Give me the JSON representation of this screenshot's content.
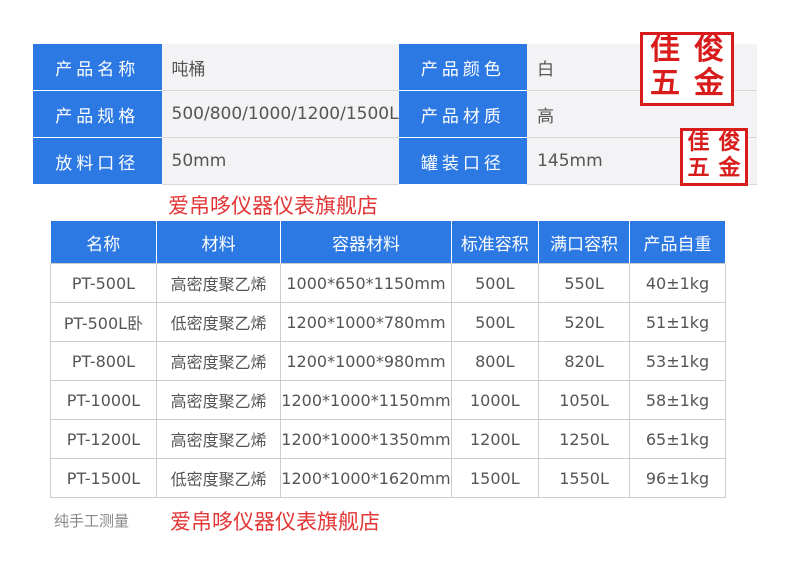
{
  "spec": [
    [
      {
        "label": "产品名称",
        "value": "吨桶"
      },
      {
        "label": "产品颜色",
        "value": "白"
      }
    ],
    [
      {
        "label": "产品规格",
        "value": "500/800/1000/1200/1500L"
      },
      {
        "label": "产品材质",
        "value": "高"
      }
    ],
    [
      {
        "label": "放料口径",
        "value": "50mm"
      },
      {
        "label": "罐装口径",
        "value": "145mm"
      }
    ]
  ],
  "table": {
    "headers": [
      "名称",
      "材料",
      "容器材料",
      "标准容积",
      "满口容积",
      "产品自重"
    ],
    "rows": [
      [
        "PT-500L",
        "高密度聚乙烯",
        "1000*650*1150mm",
        "500L",
        "550L",
        "40±1kg"
      ],
      [
        "PT-500L卧",
        "低密度聚乙烯",
        "1200*1000*780mm",
        "500L",
        "520L",
        "51±1kg"
      ],
      [
        "PT-800L",
        "高密度聚乙烯",
        "1200*1000*980mm",
        "800L",
        "820L",
        "53±1kg"
      ],
      [
        "PT-1000L",
        "高密度聚乙烯",
        "1200*1000*1150mm",
        "1000L",
        "1050L",
        "58±1kg"
      ],
      [
        "PT-1200L",
        "高密度聚乙烯",
        "1200*1000*1350mm",
        "1200L",
        "1250L",
        "65±1kg"
      ],
      [
        "PT-1500L",
        "低密度聚乙烯",
        "1200*1000*1620mm",
        "1500L",
        "1550L",
        "96±1kg"
      ]
    ]
  },
  "note": "纯手工测量",
  "watermark": "爱帛哆仪器仪表旗舰店",
  "seal": [
    "佳",
    "俊",
    "五",
    "金"
  ],
  "colors": {
    "header_blue": "#2c79e4",
    "watermark_red": "#e02020"
  }
}
